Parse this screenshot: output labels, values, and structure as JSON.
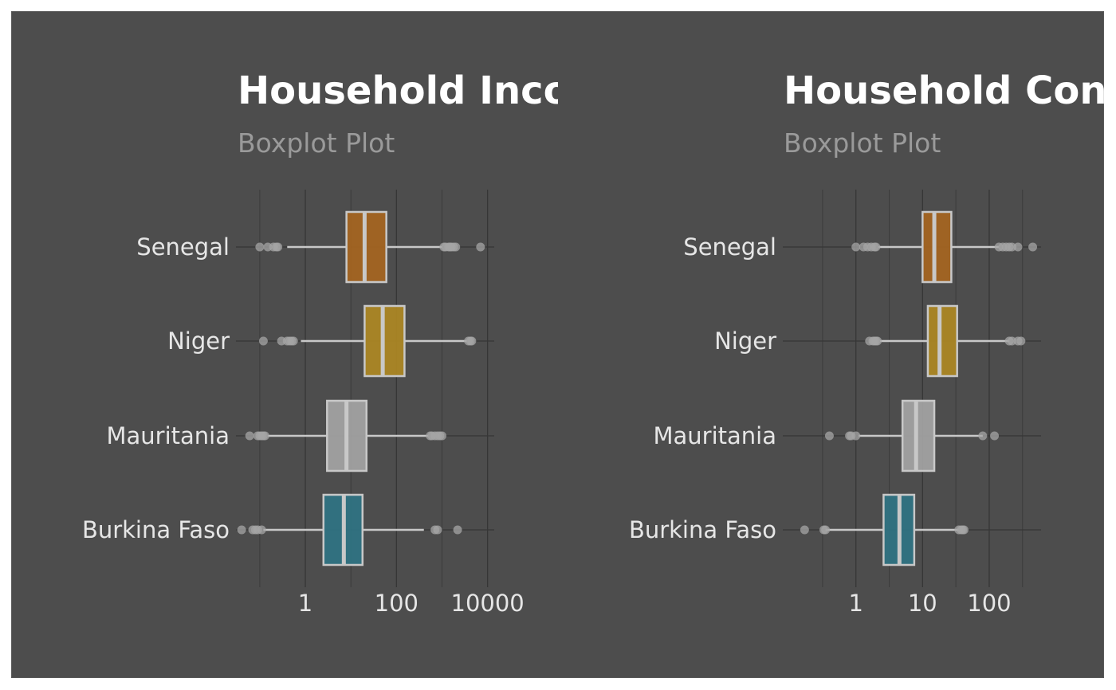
{
  "chart_data": [
    {
      "type": "boxplot",
      "title": "Household Inco",
      "subtitle": "Boxplot Plot",
      "scale": "log10",
      "xlim": [
        0.03,
        14000
      ],
      "xticks": [
        1,
        100,
        10000
      ],
      "xtick_labels": [
        "1",
        "100",
        "10000"
      ],
      "categories": [
        "Senegal",
        "Niger",
        "Mauritania",
        "Burkina Faso"
      ],
      "colors": [
        "#a9661f",
        "#b08a22",
        "#a6a6a6",
        "#2f7485"
      ],
      "boxes": [
        {
          "q1": 8,
          "median": 20,
          "q3": 60,
          "whisker_low": 0.4,
          "whisker_high": 1000,
          "outliers": [
            0.1,
            0.15,
            0.2,
            0.23,
            0.25,
            1100,
            1200,
            1400,
            1500,
            1600,
            1800,
            2000,
            7000
          ]
        },
        {
          "q1": 20,
          "median": 50,
          "q3": 150,
          "whisker_low": 0.8,
          "whisker_high": 3500,
          "outliers": [
            0.12,
            0.3,
            0.4,
            0.45,
            0.5,
            0.55,
            3800,
            4200,
            4500
          ]
        },
        {
          "q1": 3,
          "median": 8,
          "q3": 22,
          "whisker_low": 0.15,
          "whisker_high": 500,
          "outliers": [
            0.06,
            0.09,
            0.1,
            0.11,
            0.12,
            0.13,
            550,
            600,
            700,
            800,
            900,
            1000
          ]
        },
        {
          "q1": 2.5,
          "median": 7,
          "q3": 18,
          "whisker_low": 0.12,
          "whisker_high": 400,
          "outliers": [
            0.04,
            0.07,
            0.08,
            0.09,
            0.11,
            700,
            800,
            2200
          ]
        }
      ]
    },
    {
      "type": "boxplot",
      "title": "Household Con",
      "subtitle": "Boxplot Plot",
      "scale": "log10",
      "xlim": [
        0.08,
        600
      ],
      "xticks": [
        1,
        10,
        100
      ],
      "xtick_labels": [
        "1",
        "10",
        "100"
      ],
      "categories": [
        "Senegal",
        "Niger",
        "Mauritania",
        "Burkina Faso"
      ],
      "colors": [
        "#a9661f",
        "#b08a22",
        "#a6a6a6",
        "#2f7485"
      ],
      "boxes": [
        {
          "q1": 10,
          "median": 15,
          "q3": 27,
          "whisker_low": 2.2,
          "whisker_high": 140,
          "outliers": [
            1,
            1.3,
            1.5,
            1.7,
            1.9,
            2,
            140,
            160,
            180,
            200,
            220,
            270,
            450
          ]
        },
        {
          "q1": 12,
          "median": 18,
          "q3": 33,
          "whisker_low": 2.3,
          "whisker_high": 200,
          "outliers": [
            1.6,
            1.8,
            1.9,
            2.0,
            2.1,
            200,
            220,
            270,
            300
          ]
        },
        {
          "q1": 5,
          "median": 8,
          "q3": 15,
          "whisker_low": 1.1,
          "whisker_high": 80,
          "outliers": [
            0.4,
            0.8,
            0.85,
            1.0,
            80,
            120
          ]
        },
        {
          "q1": 2.6,
          "median": 4.5,
          "q3": 7.5,
          "whisker_low": 0.35,
          "whisker_high": 35,
          "outliers": [
            0.17,
            0.33,
            0.35,
            35,
            38,
            40,
            42
          ]
        }
      ]
    }
  ]
}
